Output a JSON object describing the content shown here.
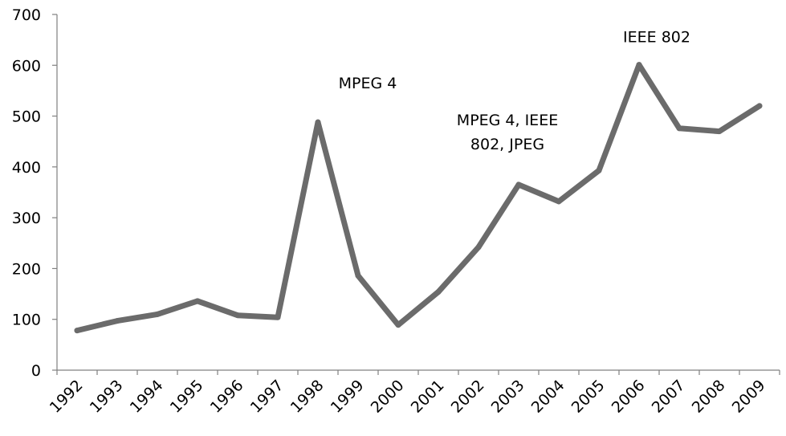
{
  "chart_data": {
    "type": "line",
    "title": "",
    "xlabel": "",
    "ylabel": "",
    "categories": [
      "1992",
      "1993",
      "1994",
      "1995",
      "1996",
      "1997",
      "1998",
      "1999",
      "2000",
      "2001",
      "2002",
      "2003",
      "2004",
      "2005",
      "2006",
      "2007",
      "2008",
      "2009"
    ],
    "series": [
      {
        "values": [
          78,
          97,
          110,
          136,
          108,
          104,
          488,
          186,
          89,
          154,
          242,
          365,
          332,
          393,
          601,
          476,
          470,
          520
        ],
        "color": "#6b6b6b"
      }
    ],
    "ylim": [
      0,
      700
    ],
    "yticks": [
      "0",
      "100",
      "200",
      "300",
      "400",
      "500",
      "600",
      "700"
    ],
    "grid": false,
    "legend": "none",
    "annotations": [
      {
        "lines": [
          "MPEG 4"
        ],
        "category": "1998",
        "value": 488
      },
      {
        "lines": [
          "MPEG 4, IEEE",
          "802, JPEG"
        ],
        "category": "2003",
        "value": 365
      },
      {
        "lines": [
          "IEEE 802"
        ],
        "category": "2006",
        "value": 601
      }
    ]
  }
}
